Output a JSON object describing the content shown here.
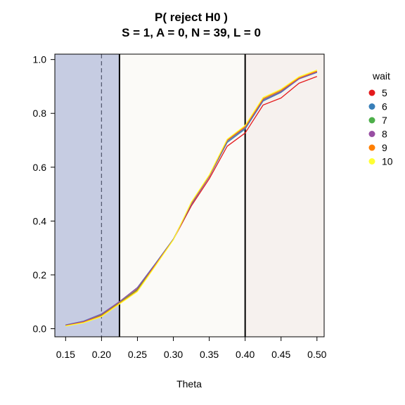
{
  "chart_data": {
    "type": "line",
    "title": "P( reject H0 )",
    "subtitle": "S = 1, A = 0, N = 39, L = 0",
    "xlabel": "Theta",
    "ylabel": "",
    "xlim": [
      0.135,
      0.51
    ],
    "ylim": [
      -0.03,
      1.02
    ],
    "xticks": [
      0.15,
      0.2,
      0.25,
      0.3,
      0.35,
      0.4,
      0.45,
      0.5
    ],
    "xtick_labels": [
      "0.15",
      "0.20",
      "0.25",
      "0.30",
      "0.35",
      "0.40",
      "0.45",
      "0.50"
    ],
    "yticks": [
      0.0,
      0.2,
      0.4,
      0.6,
      0.8,
      1.0
    ],
    "ytick_labels": [
      "0.0",
      "0.2",
      "0.4",
      "0.6",
      "0.8",
      "1.0"
    ],
    "grid": false,
    "regions": [
      {
        "from": 0.135,
        "to": 0.225,
        "color": "#c6cce2"
      },
      {
        "from": 0.225,
        "to": 0.4,
        "color": "#fbfaf7"
      },
      {
        "from": 0.4,
        "to": 0.51,
        "color": "#f6f1ee"
      }
    ],
    "vlines": [
      {
        "x": 0.2,
        "style": "dashed",
        "color": "#555a70"
      },
      {
        "x": 0.225,
        "style": "solid",
        "color": "#000000"
      },
      {
        "x": 0.4,
        "style": "solid",
        "color": "#000000"
      }
    ],
    "legend_title": "wait",
    "legend_position": "right",
    "x": [
      0.15,
      0.175,
      0.2,
      0.225,
      0.25,
      0.275,
      0.3,
      0.325,
      0.35,
      0.375,
      0.4,
      0.425,
      0.45,
      0.475,
      0.5
    ],
    "series": [
      {
        "name": "5",
        "color": "#e41a1c",
        "values": [
          0.013,
          0.027,
          0.052,
          0.096,
          0.147,
          0.237,
          0.331,
          0.456,
          0.557,
          0.678,
          0.727,
          0.831,
          0.857,
          0.912,
          0.937
        ]
      },
      {
        "name": "6",
        "color": "#377eb8",
        "values": [
          0.014,
          0.028,
          0.055,
          0.1,
          0.153,
          0.242,
          0.333,
          0.462,
          0.565,
          0.692,
          0.742,
          0.846,
          0.878,
          0.928,
          0.952
        ]
      },
      {
        "name": "7",
        "color": "#4daf4a",
        "values": [
          0.012,
          0.026,
          0.05,
          0.097,
          0.145,
          0.239,
          0.332,
          0.466,
          0.567,
          0.697,
          0.746,
          0.851,
          0.882,
          0.93,
          0.955
        ]
      },
      {
        "name": "8",
        "color": "#984ea3",
        "values": [
          0.013,
          0.027,
          0.054,
          0.101,
          0.152,
          0.24,
          0.332,
          0.464,
          0.566,
          0.698,
          0.747,
          0.85,
          0.881,
          0.929,
          0.954
        ]
      },
      {
        "name": "9",
        "color": "#ff7f00",
        "values": [
          0.011,
          0.024,
          0.048,
          0.095,
          0.141,
          0.236,
          0.331,
          0.468,
          0.569,
          0.701,
          0.751,
          0.855,
          0.886,
          0.932,
          0.957
        ]
      },
      {
        "name": "10",
        "color": "#ffff33",
        "values": [
          0.01,
          0.022,
          0.045,
          0.092,
          0.138,
          0.233,
          0.33,
          0.47,
          0.571,
          0.704,
          0.755,
          0.859,
          0.89,
          0.936,
          0.961
        ]
      }
    ]
  }
}
